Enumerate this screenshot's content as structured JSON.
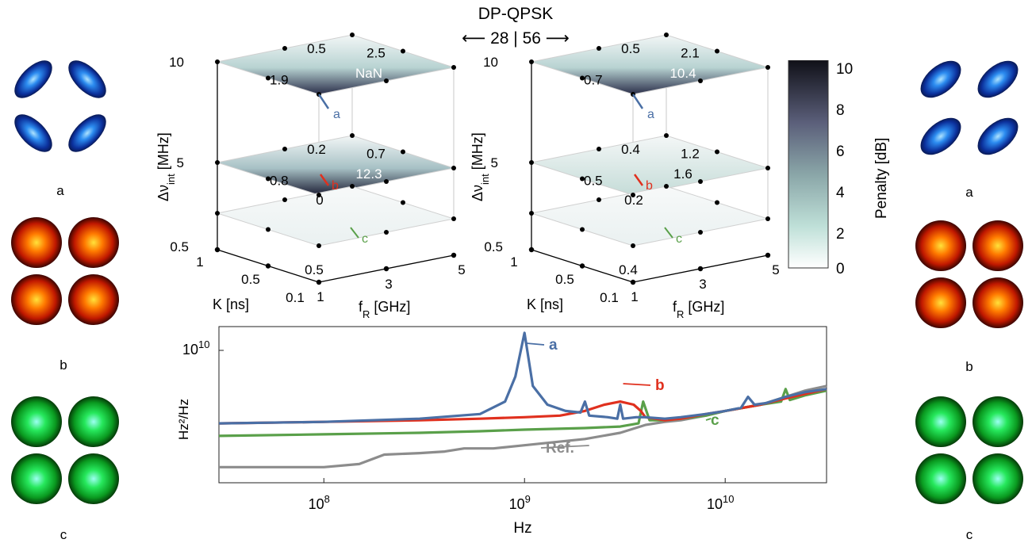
{
  "header": {
    "title": "DP-QPSK",
    "baud_left": "28",
    "baud_sep": "|",
    "baud_right": "56"
  },
  "constellations": {
    "left": [
      "a",
      "b",
      "c"
    ],
    "right": [
      "a",
      "b",
      "c"
    ]
  },
  "colors": {
    "a": "#4a6fa5",
    "b": "#e0301e",
    "c": "#5aa04a",
    "ref": "#8c8c8c",
    "const_a": "#2a7fe8",
    "const_b": "#f06000",
    "const_c": "#22cc33"
  },
  "cubes": [
    {
      "id": "28",
      "top_values": {
        "left": "1.9",
        "back": "0.5",
        "right": "2.5",
        "front": "NaN"
      },
      "mid_values": {
        "left": "0.8",
        "back": "0.2",
        "right": "0.7",
        "front": "12.3"
      },
      "bot_values": {
        "back": "0",
        "front": "0.5"
      },
      "markers": {
        "a": "a",
        "b": "b",
        "c": "c"
      }
    },
    {
      "id": "56",
      "top_values": {
        "left": "0.7",
        "back": "0.5",
        "right": "2.1",
        "front": "10.4"
      },
      "mid_values": {
        "left": "0.5",
        "back": "0.4",
        "right": "1.2",
        "front": "1.6"
      },
      "bot_values": {
        "back": "0.2",
        "front": "0.4"
      },
      "markers": {
        "a": "a",
        "b": "b",
        "c": "c"
      }
    }
  ],
  "cube_axes": {
    "y_label": "Δν",
    "y_sub": "int",
    "y_unit": " [MHz]",
    "y_ticks": [
      "10",
      "5",
      "0.5"
    ],
    "k_label": "K [ns]",
    "k_ticks": [
      "1",
      "0.5",
      "0.1"
    ],
    "f_label": "f",
    "f_sub": "R",
    "f_unit": " [GHz]",
    "f_ticks": [
      "1",
      "3",
      "5"
    ]
  },
  "colorbar": {
    "label": "Penalty [dB]",
    "ticks": [
      "10",
      "8",
      "6",
      "4",
      "2",
      "0"
    ],
    "range": [
      0,
      10
    ]
  },
  "chart_data": {
    "type": "line",
    "xlabel": "Hz",
    "ylabel": "Hz²/Hz",
    "xscale": "log",
    "xlim": [
      30000000,
      32000000000
    ],
    "x_ticks": [
      "10",
      "10",
      "10"
    ],
    "x_tick_exp": [
      "8",
      "9",
      "10"
    ],
    "y_ticks": [
      "10"
    ],
    "y_tick_exp": [
      "10"
    ],
    "series": [
      {
        "name": "a",
        "color": "#4a6fa5",
        "x": [
          30000000.0,
          100000000.0,
          300000000.0,
          600000000.0,
          800000000.0,
          900000000.0,
          1000000000.0,
          1100000000.0,
          1300000000.0,
          1600000000.0,
          1900000000.0,
          2000000000.0,
          2100000000.0,
          2600000000.0,
          2900000000.0,
          3000000000.0,
          3100000000.0,
          3600000000.0,
          4000000000.0,
          5000000000.0,
          6000000000.0,
          8000000000.0,
          10000000000.0,
          12000000000.0,
          13000000000.0,
          14000000000.0,
          16000000000.0,
          20000000000.0,
          25000000000.0,
          32000000000.0
        ],
        "v": [
          0.38,
          0.39,
          0.41,
          0.44,
          0.52,
          0.68,
          0.96,
          0.62,
          0.5,
          0.46,
          0.45,
          0.52,
          0.43,
          0.42,
          0.41,
          0.5,
          0.41,
          0.42,
          0.42,
          0.41,
          0.42,
          0.44,
          0.46,
          0.48,
          0.55,
          0.5,
          0.51,
          0.55,
          0.58,
          0.6
        ]
      },
      {
        "name": "b",
        "color": "#e0301e",
        "x": [
          30000000.0,
          100000000.0,
          300000000.0,
          600000000.0,
          1000000000.0,
          1500000000.0,
          2000000000.0,
          2500000000.0,
          3000000000.0,
          3500000000.0,
          3800000000.0,
          4000000000.0,
          4500000000.0,
          5000000000.0,
          6000000000.0,
          8000000000.0,
          10000000000.0,
          15000000000.0,
          20000000000.0,
          32000000000.0
        ],
        "v": [
          0.38,
          0.39,
          0.4,
          0.41,
          0.42,
          0.43,
          0.46,
          0.5,
          0.52,
          0.5,
          0.46,
          0.42,
          0.41,
          0.4,
          0.41,
          0.44,
          0.46,
          0.5,
          0.54,
          0.6
        ]
      },
      {
        "name": "c",
        "color": "#5aa04a",
        "x": [
          30000000.0,
          100000000.0,
          300000000.0,
          600000000.0,
          1000000000.0,
          2000000000.0,
          3000000000.0,
          3700000000.0,
          3900000000.0,
          4200000000.0,
          5000000000.0,
          6000000000.0,
          8000000000.0,
          10000000000.0,
          15000000000.0,
          19000000000.0,
          20000000000.0,
          21000000000.0,
          25000000000.0,
          32000000000.0
        ],
        "v": [
          0.3,
          0.31,
          0.32,
          0.33,
          0.34,
          0.35,
          0.36,
          0.38,
          0.52,
          0.4,
          0.4,
          0.41,
          0.43,
          0.46,
          0.5,
          0.52,
          0.6,
          0.53,
          0.56,
          0.59
        ]
      },
      {
        "name": "Ref.",
        "color": "#8c8c8c",
        "x": [
          30000000.0,
          100000000.0,
          150000000.0,
          200000000.0,
          300000000.0,
          400000000.0,
          500000000.0,
          700000000.0,
          1000000000.0,
          2000000000.0,
          3000000000.0,
          4000000000.0,
          5000000000.0,
          6000000000.0,
          8000000000.0,
          10000000000.0,
          15000000000.0,
          20000000000.0,
          25000000000.0,
          32000000000.0
        ],
        "v": [
          0.1,
          0.1,
          0.12,
          0.18,
          0.19,
          0.2,
          0.22,
          0.22,
          0.24,
          0.28,
          0.32,
          0.37,
          0.39,
          0.4,
          0.43,
          0.46,
          0.5,
          0.55,
          0.59,
          0.62
        ]
      }
    ],
    "annotations": [
      "a",
      "b",
      "c",
      "Ref."
    ]
  }
}
